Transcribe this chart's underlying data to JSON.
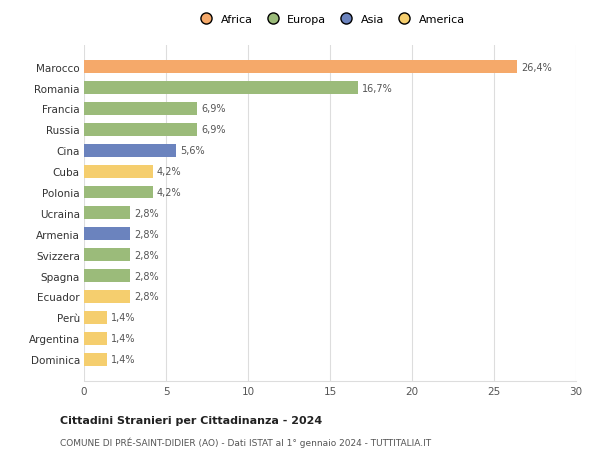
{
  "countries": [
    "Marocco",
    "Romania",
    "Francia",
    "Russia",
    "Cina",
    "Cuba",
    "Polonia",
    "Ucraina",
    "Armenia",
    "Svizzera",
    "Spagna",
    "Ecuador",
    "Perù",
    "Argentina",
    "Dominica"
  ],
  "values": [
    26.4,
    16.7,
    6.9,
    6.9,
    5.6,
    4.2,
    4.2,
    2.8,
    2.8,
    2.8,
    2.8,
    2.8,
    1.4,
    1.4,
    1.4
  ],
  "labels": [
    "26,4%",
    "16,7%",
    "6,9%",
    "6,9%",
    "5,6%",
    "4,2%",
    "4,2%",
    "2,8%",
    "2,8%",
    "2,8%",
    "2,8%",
    "2,8%",
    "1,4%",
    "1,4%",
    "1,4%"
  ],
  "colors": [
    "#F5A96A",
    "#9BBB7A",
    "#9BBB7A",
    "#9BBB7A",
    "#6B83BE",
    "#F5CE6E",
    "#9BBB7A",
    "#9BBB7A",
    "#6B83BE",
    "#9BBB7A",
    "#9BBB7A",
    "#F5CE6E",
    "#F5CE6E",
    "#F5CE6E",
    "#F5CE6E"
  ],
  "continents": [
    "Africa",
    "Europa",
    "Asia",
    "America"
  ],
  "legend_colors": [
    "#F5A96A",
    "#9BBB7A",
    "#6B83BE",
    "#F5CE6E"
  ],
  "title": "Cittadini Stranieri per Cittadinanza - 2024",
  "subtitle": "COMUNE DI PRÉ-SAINT-DIDIER (AO) - Dati ISTAT al 1° gennaio 2024 - TUTTITALIA.IT",
  "xlim": [
    0,
    30
  ],
  "xticks": [
    0,
    5,
    10,
    15,
    20,
    25,
    30
  ],
  "bg_color": "#ffffff",
  "grid_color": "#dddddd"
}
